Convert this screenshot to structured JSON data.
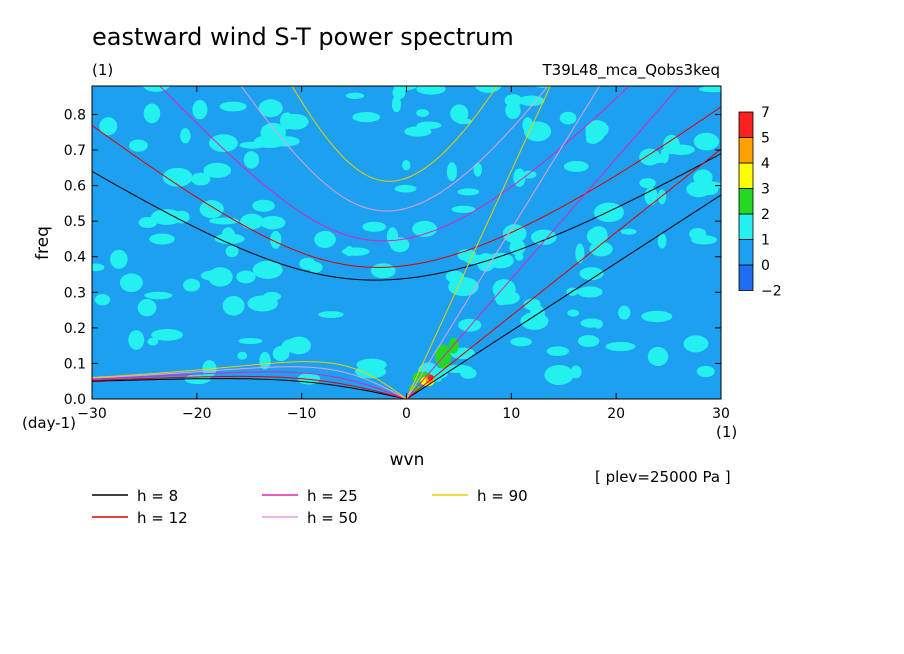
{
  "chart_data": {
    "type": "heatmap",
    "title": "eastward wind S-T power spectrum",
    "subtitle_left": "(1)",
    "subtitle_right": "T39L48_mca_Qobs3keq",
    "xlabel": "wvn",
    "ylabel": "freq",
    "x_unit": "(1)",
    "y_unit": "(day-1)",
    "level_note": "[ plev=25000 Pa ]",
    "xlim": [
      -30,
      30
    ],
    "ylim": [
      0,
      0.88
    ],
    "x_ticks": [
      -30,
      -20,
      -10,
      0,
      10,
      20,
      30
    ],
    "x_tick_labels": [
      "−30",
      "−20",
      "−10",
      "0",
      "10",
      "20",
      "30"
    ],
    "y_ticks": [
      0.0,
      0.1,
      0.2,
      0.3,
      0.4,
      0.5,
      0.6,
      0.7,
      0.8
    ],
    "y_tick_labels": [
      "0.0",
      "0.1",
      "0.2",
      "0.3",
      "0.4",
      "0.5",
      "0.6",
      "0.7",
      "0.8"
    ],
    "colorbar": {
      "levels": [
        "−2",
        "0",
        "1",
        "2",
        "3",
        "4",
        "5",
        "7"
      ],
      "colors": [
        "#1e6cf0",
        "#1ea0f0",
        "#24f0f0",
        "#24d824",
        "#ffff00",
        "#ffa000",
        "#ff2020"
      ]
    },
    "dispersion_curves": [
      {
        "name": "h =  8",
        "h": 8,
        "color": "#000000"
      },
      {
        "name": "h = 12",
        "h": 12,
        "color": "#e00000"
      },
      {
        "name": "h = 25",
        "h": 25,
        "color": "#e020c0"
      },
      {
        "name": "h = 50",
        "h": 50,
        "color": "#e0a0e0"
      },
      {
        "name": "h = 90",
        "h": 90,
        "color": "#e8d000"
      }
    ],
    "background_level_color": "#1ea0f0",
    "patch_level_color": "#24f0f0"
  }
}
